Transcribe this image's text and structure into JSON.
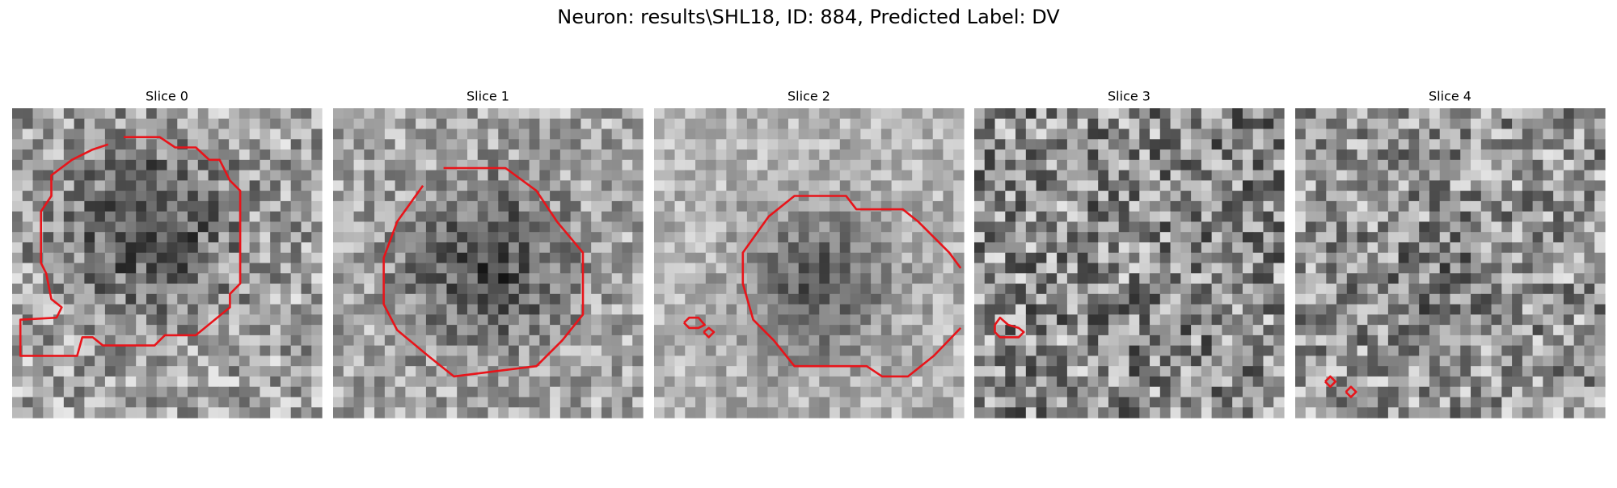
{
  "title": "Neuron: results\\SHL18, ID: 884, Predicted Label: DV",
  "panels": [
    {
      "title": "Slice 0"
    },
    {
      "title": "Slice 1"
    },
    {
      "title": "Slice 2"
    },
    {
      "title": "Slice 3"
    },
    {
      "title": "Slice 4"
    }
  ]
}
